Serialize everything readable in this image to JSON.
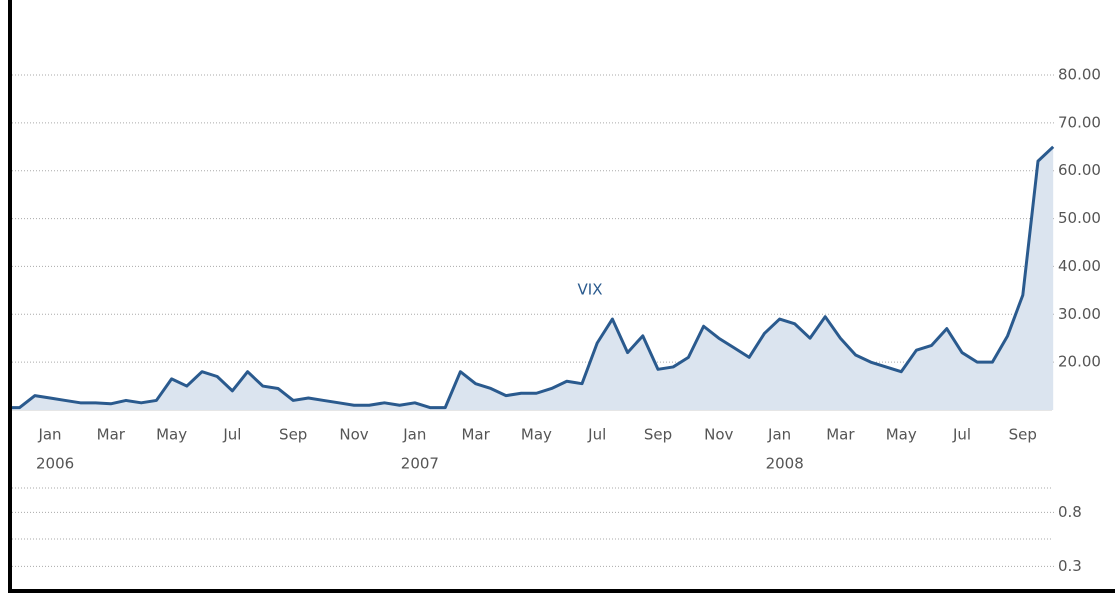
{
  "chart_data": [
    {
      "type": "line",
      "categories": [
        null,
        null,
        "Jan",
        null,
        null,
        null,
        "Mar",
        null,
        null,
        null,
        "May",
        null,
        null,
        null,
        "Jul",
        null,
        null,
        null,
        "Sep",
        null,
        null,
        null,
        "Nov",
        null,
        null,
        null,
        "Jan",
        null,
        null,
        null,
        "Mar",
        null,
        null,
        null,
        "May",
        null,
        null,
        null,
        "Jul",
        null,
        null,
        null,
        "Sep",
        null,
        null,
        null,
        "Nov",
        null,
        null,
        null,
        "Jan",
        null,
        null,
        null,
        "Mar",
        null,
        null,
        null,
        "May",
        null,
        null,
        null,
        "Jul",
        null,
        null,
        null,
        "Sep",
        null,
        null
      ],
      "years": [
        "2006",
        "2007",
        "2008"
      ],
      "series": [
        {
          "name": "VIX",
          "color": "#2a5a8e",
          "values": [
            10.5,
            13,
            12.5,
            12,
            11.5,
            11.5,
            11.3,
            12,
            11.5,
            12,
            16.5,
            15,
            18,
            17,
            14,
            18,
            15,
            14.5,
            12,
            12.5,
            12,
            11.5,
            11,
            11,
            11.5,
            11,
            11.5,
            10.5,
            10.5,
            18,
            15.5,
            14.5,
            13,
            13.5,
            13.5,
            14.5,
            16,
            15.5,
            24,
            29,
            22,
            25.5,
            18.5,
            19,
            21,
            27.5,
            25,
            23,
            21,
            26,
            29,
            28,
            25,
            29.5,
            25,
            21.5,
            20,
            19,
            18,
            22.5,
            23.5,
            27,
            22,
            20,
            20,
            25.5,
            34,
            62,
            65
          ]
        }
      ],
      "ylim": [
        10,
        80
      ],
      "yticks": [
        {
          "value": 20,
          "label": "20.00"
        },
        {
          "value": 30,
          "label": "30.00"
        },
        {
          "value": 40,
          "label": "40.00"
        },
        {
          "value": 50,
          "label": "50.00"
        },
        {
          "value": 60,
          "label": "60.00"
        },
        {
          "value": 70,
          "label": "70.00"
        },
        {
          "value": 80,
          "label": "80.00"
        }
      ],
      "grid": true,
      "fill": "#dbe4ef"
    },
    {
      "type": "line",
      "ylim": [
        0.1,
        1.1
      ],
      "yticks": [
        0.8,
        0.3
      ],
      "grid": true
    }
  ]
}
